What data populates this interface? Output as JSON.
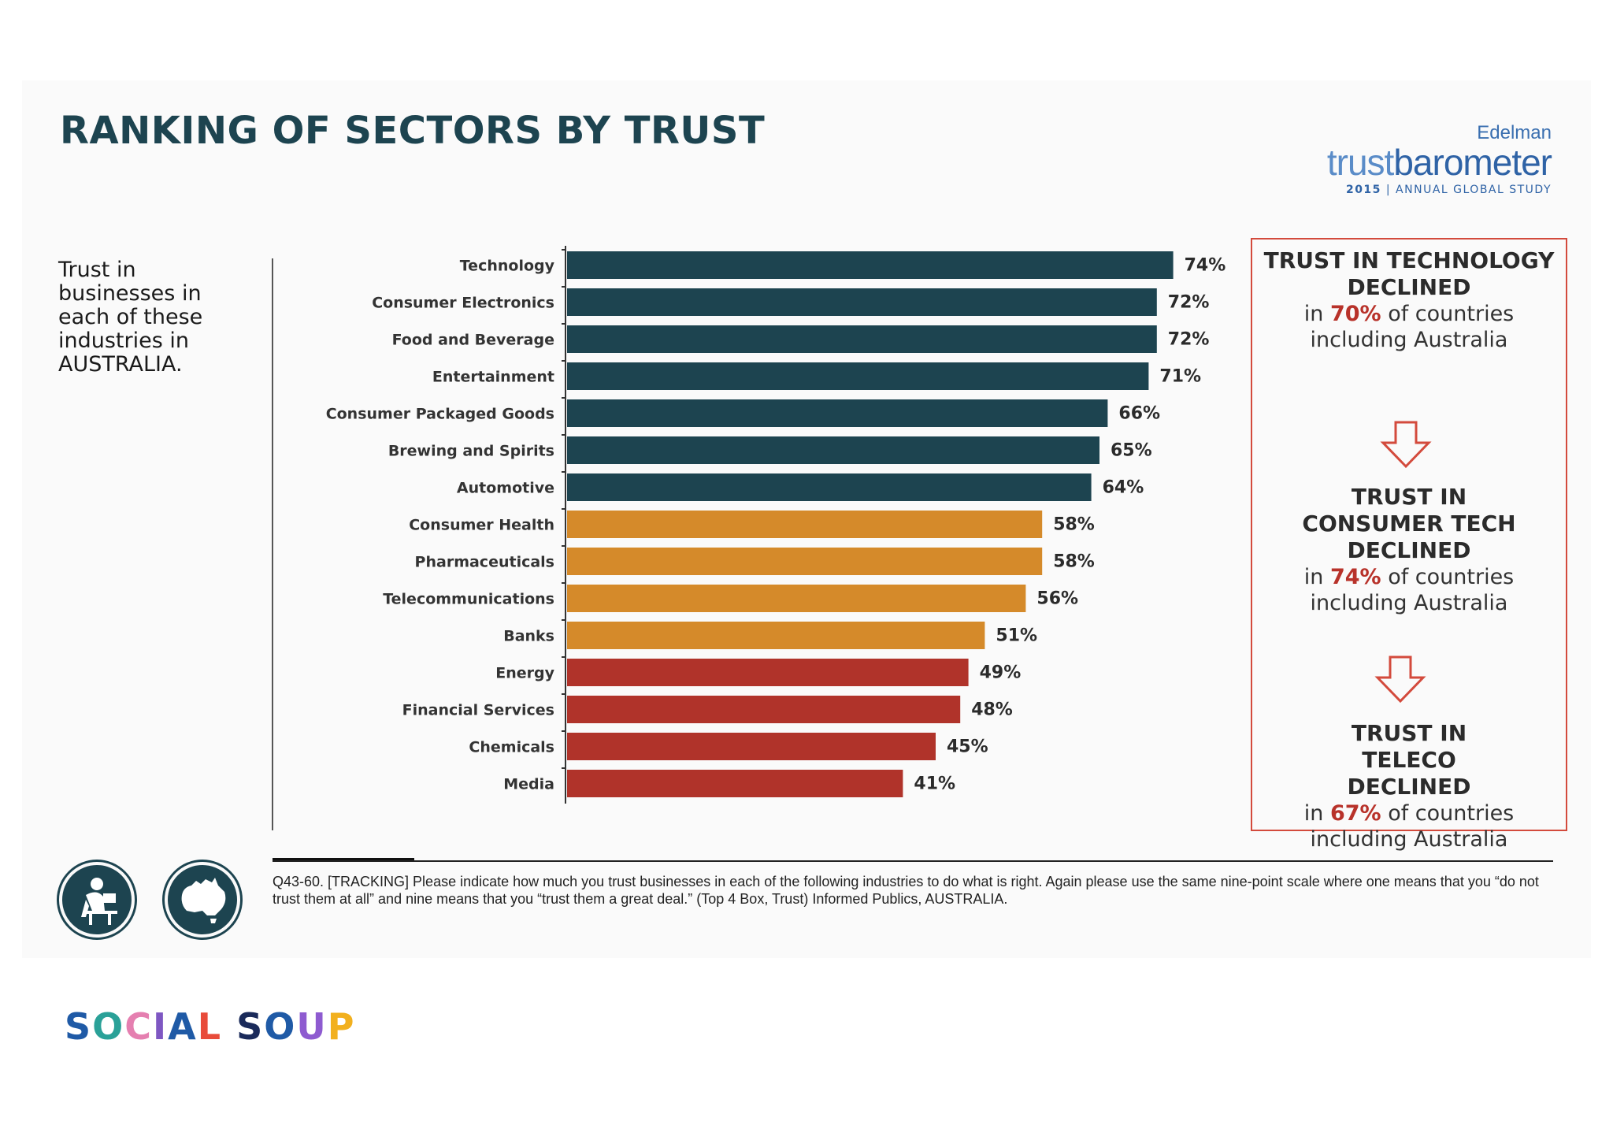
{
  "title": "RANKING OF SECTORS BY TRUST",
  "logo": {
    "edelman": "Edelman",
    "brand_light": "trust",
    "brand_bold": "barometer",
    "year": "2015",
    "separator": "|",
    "subtitle": "ANNUAL GLOBAL STUDY"
  },
  "side_text": "Trust in businesses in each of these industries in AUSTRALIA.",
  "chart_data": {
    "type": "bar",
    "orientation": "horizontal",
    "categories": [
      "Technology",
      "Consumer Electronics",
      "Food and Beverage",
      "Entertainment",
      "Consumer Packaged Goods",
      "Brewing and Spirits",
      "Automotive",
      "Consumer Health",
      "Pharmaceuticals",
      "Telecommunications",
      "Banks",
      "Energy",
      "Financial Services",
      "Chemicals",
      "Media"
    ],
    "values": [
      74,
      72,
      72,
      71,
      66,
      65,
      64,
      58,
      58,
      56,
      51,
      49,
      48,
      45,
      41
    ],
    "value_labels": [
      "74%",
      "72%",
      "72%",
      "71%",
      "66%",
      "65%",
      "64%",
      "58%",
      "58%",
      "56%",
      "51%",
      "49%",
      "48%",
      "45%",
      "41%"
    ],
    "bar_groups": [
      "trusted",
      "trusted",
      "trusted",
      "trusted",
      "trusted",
      "trusted",
      "trusted",
      "neutral",
      "neutral",
      "neutral",
      "neutral",
      "distrusted",
      "distrusted",
      "distrusted",
      "distrusted"
    ],
    "group_colors": {
      "trusted": "#1d4450",
      "neutral": "#d58a2a",
      "distrusted": "#b0332a"
    },
    "xlim": [
      0,
      100
    ],
    "grid": false,
    "legend": "none"
  },
  "callouts": [
    {
      "headline": "TRUST IN TECHNOLOGY DECLINED",
      "prefix": "in",
      "pct": "70%",
      "suffix": "of countries",
      "line2": "including Australia"
    },
    {
      "headline": "TRUST IN CONSUMER TECH DECLINED",
      "prefix": "in",
      "pct": "74%",
      "suffix": "of countries",
      "line2": "including Australia"
    },
    {
      "headline": "TRUST IN TELECO DECLINED",
      "prefix": "in",
      "pct": "67%",
      "suffix": "of countries",
      "line2": "including Australia"
    }
  ],
  "footnote": "Q43-60. [TRACKING] Please indicate how much you trust businesses in each of the following industries to do what is right. Again please use the same nine-point scale where one means that you “do not trust them at all” and nine means that you “trust them a great deal.” (Top 4 Box, Trust) Informed Publics, AUSTRALIA.",
  "icons": [
    "person-at-computer-icon",
    "australia-map-icon"
  ],
  "colors": {
    "title": "#1d4450",
    "callout_border": "#d34a3c",
    "callout_pct": "#b8322a"
  },
  "footer_brand": {
    "letters": [
      "S",
      "O",
      "C",
      "I",
      "A",
      "L",
      " ",
      "S",
      "O",
      "U",
      "P"
    ],
    "colors": [
      "#1f5aa6",
      "#2aa198",
      "#e57fb0",
      "#7e57c2",
      "#1f5aa6",
      "#e84b3a",
      "",
      "#1a2a5a",
      "#1f5aa6",
      "#8e5bd0",
      "#f2b01e"
    ]
  }
}
